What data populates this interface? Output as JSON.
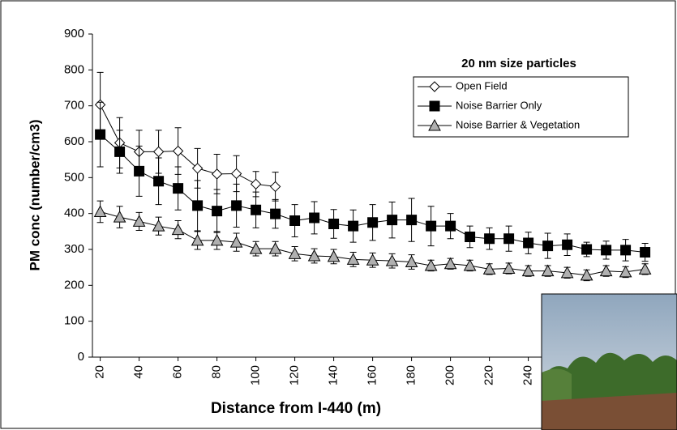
{
  "chart_data": {
    "type": "line",
    "title": "20 nm size particles",
    "x_label": "Distance from I-440 (m)",
    "y_label": "PM conc (number/cm3)",
    "x": [
      20,
      30,
      40,
      50,
      60,
      70,
      80,
      90,
      100,
      110,
      120,
      130,
      140,
      150,
      160,
      170,
      180,
      190,
      200,
      210,
      220,
      230,
      240,
      250,
      260,
      270,
      280,
      290,
      300
    ],
    "xlim": [
      16,
      306
    ],
    "xticks": [
      20,
      40,
      60,
      80,
      100,
      120,
      140,
      160,
      180,
      200,
      220,
      240
    ],
    "ylim": [
      0,
      900
    ],
    "yticks": [
      0,
      100,
      200,
      300,
      400,
      500,
      600,
      700,
      800,
      900
    ],
    "legend": "upper right",
    "series": [
      {
        "name": "Open Field",
        "color": "#ffffff",
        "marker": "diamond",
        "values": [
          703,
          597,
          572,
          572,
          574,
          526,
          510,
          511,
          482,
          475,
          null,
          null,
          null,
          null,
          null,
          null,
          null,
          null,
          null,
          null,
          null,
          null,
          null,
          null,
          null,
          null,
          null,
          null,
          null
        ],
        "errors": [
          90,
          70,
          60,
          60,
          65,
          55,
          55,
          50,
          35,
          40,
          null,
          null,
          null,
          null,
          null,
          null,
          null,
          null,
          null,
          null,
          null,
          null,
          null,
          null,
          null,
          null,
          null,
          null,
          null
        ]
      },
      {
        "name": "Noise Barrier Only",
        "color": "#000000",
        "marker": "square",
        "values": [
          620,
          572,
          518,
          490,
          470,
          422,
          407,
          422,
          410,
          399,
          380,
          388,
          371,
          365,
          375,
          382,
          382,
          365,
          365,
          335,
          330,
          330,
          318,
          310,
          313,
          300,
          298,
          298,
          292
        ],
        "errors": [
          90,
          60,
          70,
          65,
          60,
          70,
          60,
          60,
          50,
          40,
          45,
          45,
          40,
          45,
          50,
          50,
          60,
          55,
          35,
          30,
          30,
          35,
          30,
          35,
          30,
          20,
          25,
          30,
          25
        ]
      },
      {
        "name": "Noise Barrier & Vegetation",
        "color": "#b0b0b0",
        "marker": "triangle",
        "values": [
          405,
          390,
          378,
          365,
          355,
          325,
          325,
          320,
          302,
          302,
          288,
          282,
          280,
          272,
          270,
          268,
          265,
          255,
          260,
          255,
          245,
          247,
          240,
          240,
          235,
          228,
          240,
          237,
          245
        ],
        "errors": [
          30,
          30,
          25,
          25,
          25,
          25,
          25,
          25,
          20,
          20,
          20,
          20,
          20,
          20,
          20,
          20,
          20,
          15,
          15,
          15,
          15,
          15,
          15,
          15,
          15,
          15,
          15,
          15,
          15
        ]
      }
    ]
  }
}
